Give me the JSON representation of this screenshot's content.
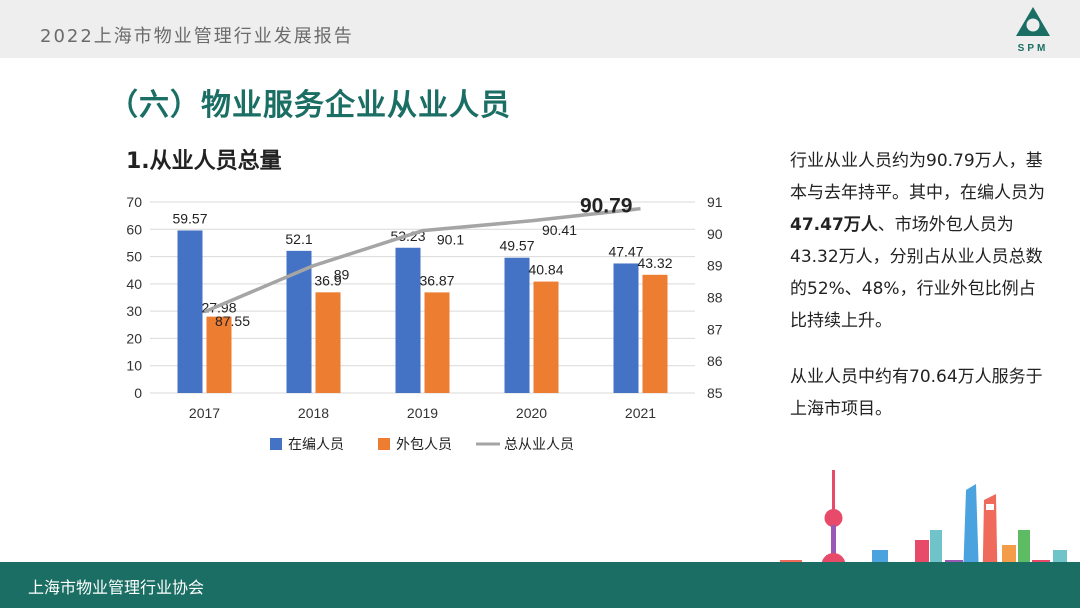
{
  "header": {
    "report_title": "2022上海市物业管理行业发展报告",
    "logo_text": "SPM"
  },
  "section": {
    "title": "（六）物业服务企业从业人员",
    "chart_title": "1.从业人员总量"
  },
  "chart_data": {
    "type": "bar",
    "categories": [
      "2017",
      "2018",
      "2019",
      "2020",
      "2021"
    ],
    "series": [
      {
        "name": "在编人员",
        "type": "bar",
        "axis": "left",
        "color": "#4472c4",
        "values": [
          59.57,
          52.1,
          53.23,
          49.57,
          47.47
        ],
        "labels": [
          "59.57",
          "52.1",
          "53.23",
          "49.57",
          "47.47"
        ]
      },
      {
        "name": "外包人员",
        "type": "bar",
        "axis": "left",
        "color": "#ed7d31",
        "values": [
          27.98,
          36.9,
          36.87,
          40.84,
          43.32
        ],
        "labels": [
          "27.98",
          "36.9",
          "36.87",
          "40.84",
          "43.32"
        ]
      },
      {
        "name": "总从业人员",
        "type": "line",
        "axis": "right",
        "color": "#a5a5a5",
        "values": [
          87.55,
          89,
          90.1,
          90.41,
          90.79
        ],
        "labels": [
          "87.55",
          "89",
          "90.1",
          "90.41",
          "90.79"
        ]
      }
    ],
    "ylim": [
      0,
      70
    ],
    "yticks": [
      "0",
      "10",
      "20",
      "30",
      "40",
      "50",
      "60",
      "70"
    ],
    "y2lim": [
      85,
      91
    ],
    "y2ticks": [
      "85",
      "86",
      "87",
      "88",
      "89",
      "90",
      "91"
    ],
    "grid": true,
    "legend_position": "bottom"
  },
  "side_text": {
    "p1_a": "行业从业人员约为90.79万人，基本与去年持平。其中，在编人员为",
    "p1_b": "47.47万人",
    "p1_c": "、市场外包人员为43.32万人，分别占从业人员总数的52%、48%，行业外包比例占比持续上升。",
    "p2": "从业人员中约有70.64万人服务于上海市项目。"
  },
  "footer": {
    "org_name": "上海市物业管理行业协会"
  },
  "colors": {
    "brand_green": "#1a6e63",
    "bar_blue": "#4472c4",
    "bar_orange": "#ed7d31",
    "line_gray": "#a5a5a5"
  }
}
